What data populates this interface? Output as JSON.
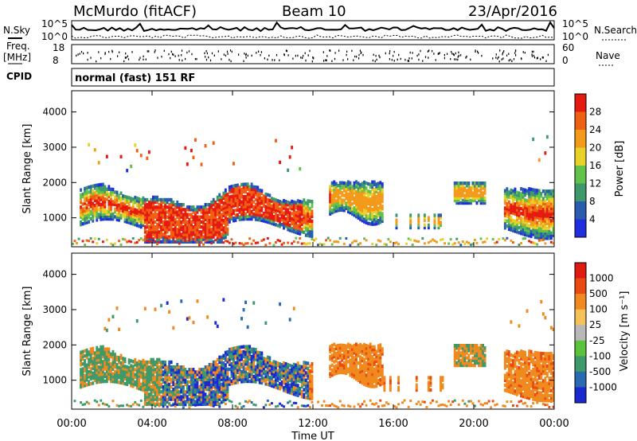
{
  "header": {
    "station": "McMurdo (fitACF)",
    "beam": "Beam 10",
    "date": "23/Apr/2016"
  },
  "panels": {
    "nsky_label": "N.Sky",
    "nsearch_label": "N.Search",
    "noise_ticks_left": [
      "10^5",
      "10^0"
    ],
    "noise_ticks_right": [
      "10^5",
      "10^0"
    ],
    "freq_label_1": "Freq.",
    "freq_label_2": "[MHz]",
    "freq_ticks": [
      "18",
      "8"
    ],
    "nave_label": "Nave",
    "nave_ticks": [
      "60",
      "0"
    ],
    "cpid_label": "CPID",
    "cpid_value": "normal (fast) 151 RF"
  },
  "chart_data": [
    {
      "type": "heatmap",
      "name_shown": "Power [dB]",
      "ylabel": "Slant Range [km]",
      "yticks": [
        "1000",
        "2000",
        "3000",
        "4000"
      ],
      "ylim": [
        180,
        4600
      ],
      "colorbar_label": "Power [dB]",
      "colorbar_ticks": [
        "4",
        "8",
        "12",
        "16",
        "20",
        "24",
        "28"
      ],
      "colors": [
        "#1f2fe0",
        "#2a5db0",
        "#3e9a6a",
        "#63c24a",
        "#e8d22a",
        "#f39a1a",
        "#f06014",
        "#e61a10"
      ],
      "regions": [
        {
          "x0": 0.5,
          "x1": 12.0,
          "r0": 600,
          "r1": 1900,
          "level": "high"
        },
        {
          "x0": 3.5,
          "x1": 7.8,
          "r0": 300,
          "r1": 1500,
          "level": "max"
        },
        {
          "x0": 13.0,
          "x1": 15.5,
          "r0": 900,
          "r1": 2100,
          "level": "mid"
        },
        {
          "x0": 19.0,
          "x1": 20.6,
          "r0": 1300,
          "r1": 2000,
          "level": "mid"
        },
        {
          "x0": 21.5,
          "x1": 24.0,
          "r0": 600,
          "r1": 1900,
          "level": "high"
        },
        {
          "x0": 0.7,
          "x1": 11.5,
          "r0": 2300,
          "r1": 3300,
          "level": "low"
        }
      ]
    },
    {
      "type": "heatmap",
      "name_shown": "Velocity [m s-1]",
      "ylabel": "Slant Range [km]",
      "yticks": [
        "1000",
        "2000",
        "3000",
        "4000"
      ],
      "ylim": [
        180,
        4600
      ],
      "colorbar_label": "Velocity [m s⁻¹]",
      "colorbar_ticks": [
        "1000",
        "500",
        "100",
        "25",
        "-25",
        "-100",
        "-500",
        "-1000"
      ],
      "colors": [
        "#1a2ad0",
        "#2a6ab0",
        "#3f9a6a",
        "#5cc23a",
        "#b8b8b8",
        "#f5c25a",
        "#f08a1e",
        "#e84a12",
        "#e01a10"
      ],
      "xlabel": "Time UT",
      "xticks": [
        "00:00",
        "04:00",
        "08:00",
        "12:00",
        "16:00",
        "20:00",
        "00:00"
      ],
      "xlim": [
        0,
        24
      ]
    }
  ]
}
